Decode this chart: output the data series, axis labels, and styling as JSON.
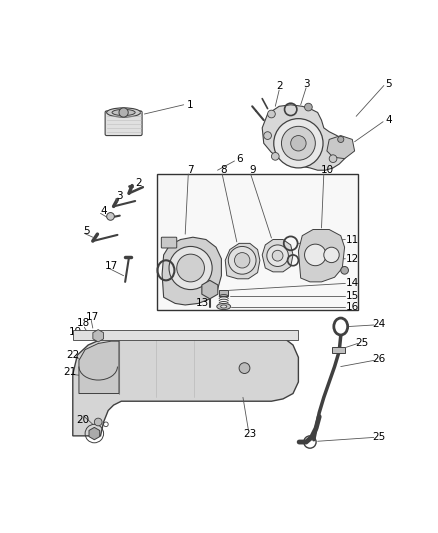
{
  "bg_color": "#ffffff",
  "line_color": "#404040",
  "gray_light": "#cccccc",
  "gray_mid": "#aaaaaa",
  "gray_dark": "#888888",
  "label_fontsize": 7.5,
  "figsize": [
    4.38,
    5.33
  ],
  "dpi": 100
}
